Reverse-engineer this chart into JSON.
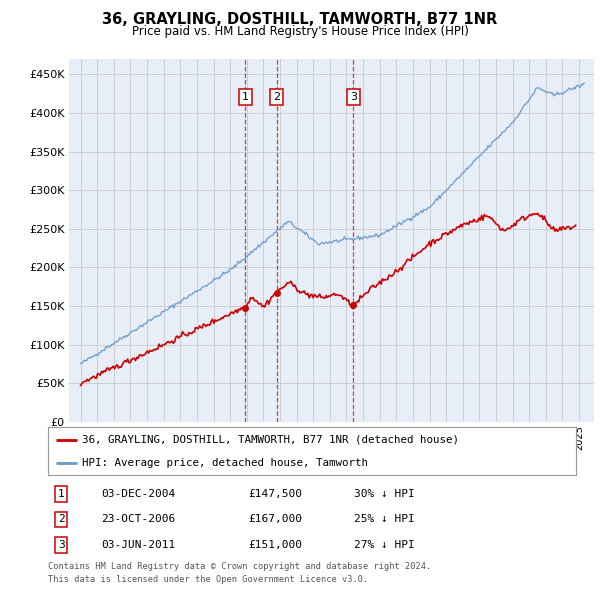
{
  "title": "36, GRAYLING, DOSTHILL, TAMWORTH, B77 1NR",
  "subtitle": "Price paid vs. HM Land Registry's House Price Index (HPI)",
  "legend_line1": "36, GRAYLING, DOSTHILL, TAMWORTH, B77 1NR (detached house)",
  "legend_line2": "HPI: Average price, detached house, Tamworth",
  "footer1": "Contains HM Land Registry data © Crown copyright and database right 2024.",
  "footer2": "This data is licensed under the Open Government Licence v3.0.",
  "transactions": [
    {
      "num": 1,
      "date": "03-DEC-2004",
      "price": 147500,
      "pct": "30%",
      "dir": "↓",
      "year": 2004.92
    },
    {
      "num": 2,
      "date": "23-OCT-2006",
      "price": 167000,
      "pct": "25%",
      "dir": "↓",
      "year": 2006.81
    },
    {
      "num": 3,
      "date": "03-JUN-2011",
      "price": 151000,
      "pct": "27%",
      "dir": "↓",
      "year": 2011.42
    }
  ],
  "red_color": "#cc0000",
  "blue_color": "#6699cc",
  "dashed_color": "#cc2222",
  "bg_color": "#e8eef8",
  "grid_color": "#c8c8c8",
  "box_edge_color": "#cc0000",
  "ylim": [
    0,
    470000
  ],
  "yticks": [
    0,
    50000,
    100000,
    150000,
    200000,
    250000,
    300000,
    350000,
    400000,
    450000
  ],
  "xlim_start": 1994.3,
  "xlim_end": 2025.9
}
